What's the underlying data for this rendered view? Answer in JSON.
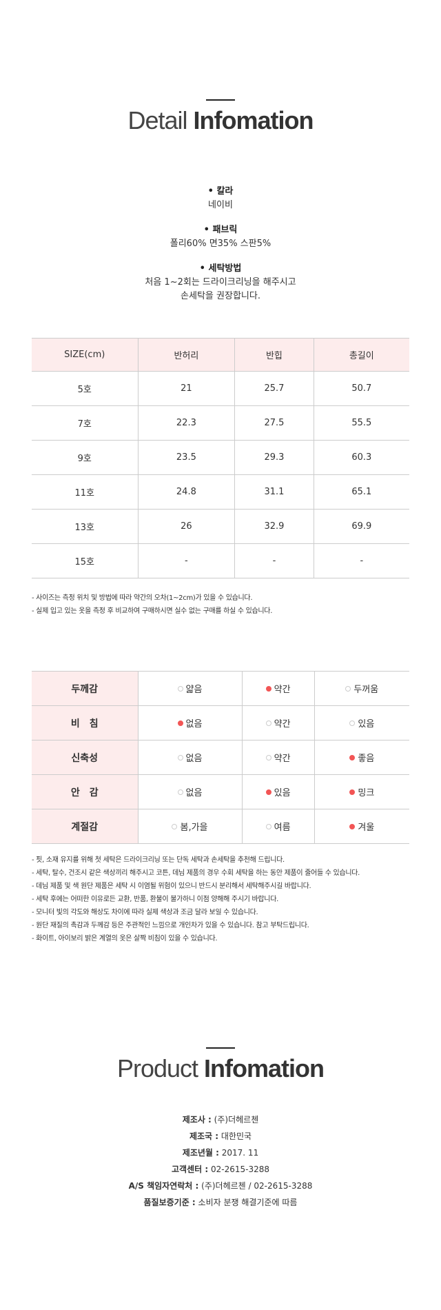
{
  "detail": {
    "title_light": "Detail",
    "title_bold": "Infomation"
  },
  "specs": [
    {
      "label": "칼라",
      "lines": [
        "네이비"
      ]
    },
    {
      "label": "패브릭",
      "lines": [
        "폴리60% 면35% 스판5%"
      ]
    },
    {
      "label": "세탁방법",
      "lines": [
        "처음 1~2회는 드라이크리닝을 해주시고",
        "손세탁을 권장합니다."
      ]
    }
  ],
  "size_table": {
    "headers": [
      "SIZE(cm)",
      "반허리",
      "반힙",
      "총길이"
    ],
    "rows": [
      [
        "5호",
        "21",
        "25.7",
        "50.7"
      ],
      [
        "7호",
        "22.3",
        "27.5",
        "55.5"
      ],
      [
        "9호",
        "23.5",
        "29.3",
        "60.3"
      ],
      [
        "11호",
        "24.8",
        "31.1",
        "65.1"
      ],
      [
        "13호",
        "26",
        "32.9",
        "69.9"
      ],
      [
        "15호",
        "-",
        "-",
        "-"
      ]
    ]
  },
  "size_notes": [
    "- 사이즈는 측정 위치 및 방법에 따라 약간의 오차(1~2cm)가 있을 수 있습니다.",
    "- 실제 입고 있는 옷을 측정 후 비교하여 구매하시면 실수 없는 구매를 하실 수 있습니다."
  ],
  "feature_table": [
    {
      "label": "두께감",
      "options": [
        "얇음",
        "약간",
        "두꺼움"
      ],
      "selected": [
        1
      ]
    },
    {
      "label": "비　침",
      "options": [
        "없음",
        "약간",
        "있음"
      ],
      "selected": [
        0
      ]
    },
    {
      "label": "신축성",
      "options": [
        "없음",
        "약간",
        "좋음"
      ],
      "selected": [
        2
      ]
    },
    {
      "label": "안　감",
      "options": [
        "없음",
        "있음",
        "밍크"
      ],
      "selected": [
        1,
        2
      ]
    },
    {
      "label": "계절감",
      "options": [
        "봄,가을",
        "여름",
        "겨울"
      ],
      "selected": [
        2
      ]
    }
  ],
  "accent_color": "#f25555",
  "care_notes": [
    "- 핏, 소재 유지를 위해 첫 세탁은 드라이크리닝 또는 단독 세탁과 손세탁을 추천해 드립니다.",
    "- 세탁, 탈수, 건조시 같은 색상끼리 해주시고 코튼, 데님 제품의 경우 수회 세탁을 하는 동안 제품이 줄어들 수 있습니다.",
    "- 데님 제품 및 색 원단 제품은 세탁 시 이염될 위험이 있으니 반드시 분리해서 세탁해주시길 바랍니다.",
    "- 세탁 후에는 어떠한 이유로든 교환, 반품, 환불이 불가하니 이점 양해해 주시기 바랍니다.",
    "- 모니터 빛의 각도와 해상도 차이에 따라 실제 색상과 조금 달라 보일 수 있습니다.",
    "- 원단 재질의 촉감과 두께감 등은 주관적인 느낌으로 개인차가 있을 수 있습니다. 참고 부탁드립니다.",
    "- 화이트, 아이보리 밝은 계열의 옷은 살짝 비침이 있을 수 있습니다."
  ],
  "product": {
    "title_light": "Product",
    "title_bold": "Infomation",
    "rows": [
      {
        "k": "제조사 :",
        "v": "(주)더헤르첸"
      },
      {
        "k": "제조국 :",
        "v": "대한민국"
      },
      {
        "k": "제조년월 :",
        "v": "2017. 11"
      },
      {
        "k": "고객센터 :",
        "v": "02-2615-3288"
      },
      {
        "k": "A/S 책임자연락처 :",
        "v": "(주)더헤르첸 / 02-2615-3288"
      },
      {
        "k": "품질보증기준 :",
        "v": "소비자 분쟁 해결기준에 따름"
      }
    ]
  }
}
